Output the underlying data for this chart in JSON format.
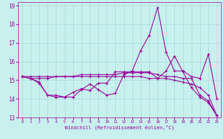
{
  "xlabel": "Windchill (Refroidissement éolien,°C)",
  "ylabel": "",
  "bg_color": "#c8f0ee",
  "grid_color": "#aadddd",
  "line_color": "#990099",
  "xlim": [
    -0.5,
    23.5
  ],
  "ylim": [
    13,
    19.2
  ],
  "yticks": [
    13,
    14,
    15,
    16,
    17,
    18,
    19
  ],
  "xticks": [
    0,
    1,
    2,
    3,
    4,
    5,
    6,
    7,
    8,
    9,
    10,
    11,
    12,
    13,
    14,
    15,
    16,
    17,
    18,
    19,
    20,
    21,
    22,
    23
  ],
  "line1_x": [
    0,
    1,
    2,
    3,
    4,
    5,
    6,
    7,
    8,
    9,
    10,
    11,
    12,
    13,
    14,
    15,
    16,
    17,
    18,
    19,
    20,
    21,
    22,
    23
  ],
  "line1_y": [
    15.2,
    15.1,
    14.9,
    14.2,
    14.2,
    14.1,
    14.1,
    14.5,
    14.8,
    14.5,
    14.2,
    14.3,
    15.3,
    15.5,
    16.6,
    17.4,
    18.9,
    16.5,
    15.5,
    15.5,
    15.2,
    15.1,
    16.4,
    14.0
  ],
  "line2_x": [
    0,
    1,
    2,
    3,
    4,
    5,
    6,
    7,
    8,
    9,
    10,
    11,
    12,
    13,
    14,
    15,
    16,
    17,
    18,
    19,
    20,
    21,
    22,
    23
  ],
  "line2_y": [
    15.2,
    15.1,
    15.1,
    15.1,
    15.2,
    15.2,
    15.2,
    15.3,
    15.3,
    15.3,
    15.3,
    15.3,
    15.4,
    15.4,
    15.4,
    15.4,
    15.3,
    15.2,
    15.2,
    15.1,
    15.1,
    14.2,
    13.9,
    13.1
  ],
  "line3_x": [
    0,
    1,
    2,
    3,
    4,
    5,
    6,
    7,
    8,
    9,
    10,
    11,
    12,
    13,
    14,
    15,
    16,
    17,
    18,
    19,
    20,
    21,
    22,
    23
  ],
  "line3_y": [
    15.2,
    15.2,
    15.2,
    15.2,
    15.2,
    15.2,
    15.2,
    15.2,
    15.2,
    15.2,
    15.2,
    15.2,
    15.2,
    15.2,
    15.2,
    15.1,
    15.1,
    15.1,
    15.0,
    14.9,
    14.8,
    14.6,
    14.2,
    13.1
  ],
  "line4_x": [
    0,
    1,
    2,
    3,
    4,
    5,
    6,
    7,
    8,
    9,
    10,
    11,
    12,
    13,
    14,
    15,
    16,
    17,
    18,
    19,
    20,
    21,
    22,
    23
  ],
  "line4_y": [
    15.2,
    15.1,
    14.85,
    14.2,
    14.1,
    14.1,
    14.35,
    14.55,
    14.45,
    14.85,
    14.85,
    15.45,
    15.45,
    15.45,
    15.45,
    15.45,
    15.1,
    15.5,
    16.3,
    15.45,
    14.6,
    14.1,
    13.8,
    13.1
  ],
  "marker": "+",
  "markersize": 3,
  "linewidth": 0.8
}
